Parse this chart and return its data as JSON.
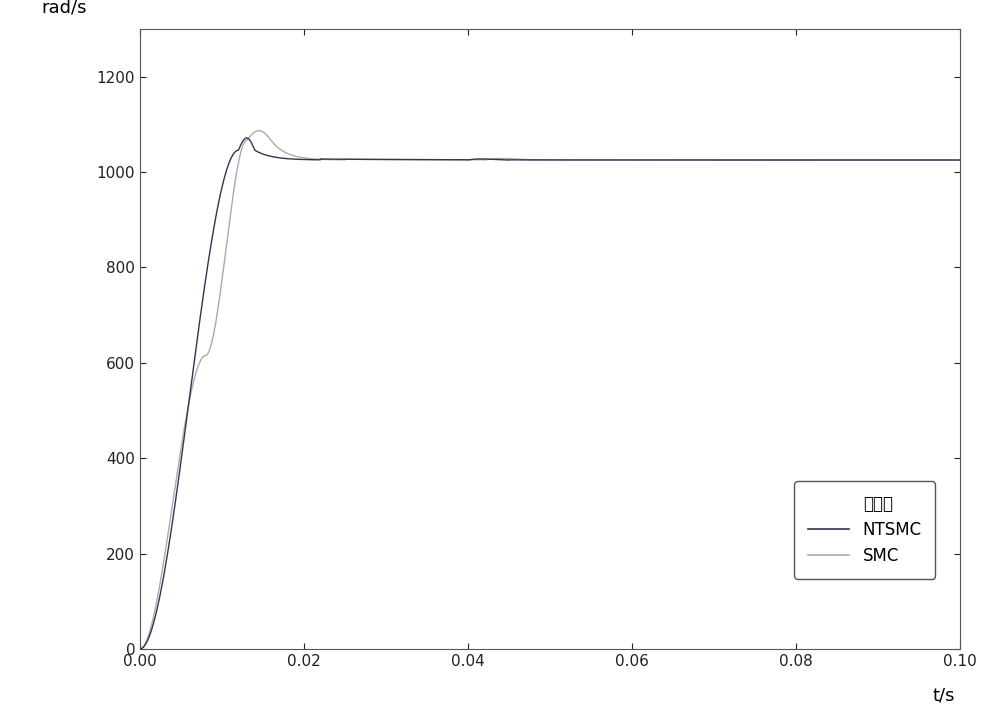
{
  "xlabel": "t/s",
  "ylabel": "rad/s",
  "xlim": [
    0,
    0.1
  ],
  "ylim": [
    0,
    1300
  ],
  "xticks": [
    0,
    0.02,
    0.04,
    0.06,
    0.08,
    0.1
  ],
  "yticks": [
    0,
    200,
    400,
    600,
    800,
    1000,
    1200
  ],
  "bg_color": "#ffffff",
  "ntsmc_color": "#333355",
  "smc_color": "#aaaaaa",
  "steady_state": 1025,
  "figsize": [
    10.0,
    7.21
  ],
  "dpi": 100
}
